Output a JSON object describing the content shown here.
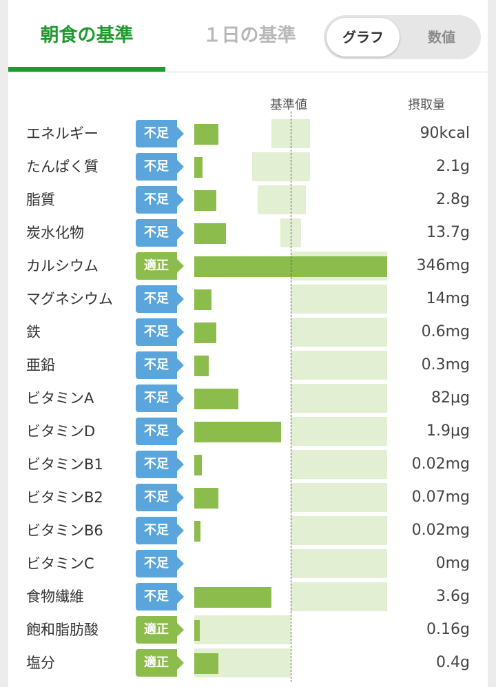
{
  "tabs": [
    {
      "label": "朝食の基準",
      "active": true
    },
    {
      "label": "１日の基準",
      "active": false
    }
  ],
  "view_toggle": {
    "options": [
      "グラフ",
      "数値"
    ],
    "selected": "グラフ"
  },
  "column_headers": {
    "standard": "基準値",
    "intake": "摂取量"
  },
  "colors": {
    "accent_green": "#1e9a2e",
    "status_lack": "#5aa6dc",
    "status_ok": "#8cbd4c",
    "range_fill": "#e3efd2"
  },
  "nutrients": [
    {
      "name": "エネルギー",
      "status": "不足",
      "status_type": "lack",
      "intake": "90kcal",
      "bar_pct": 0.125,
      "range_pct": [
        0.4,
        0.6
      ]
    },
    {
      "name": "たんぱく質",
      "status": "不足",
      "status_type": "lack",
      "intake": "2.1g",
      "bar_pct": 0.043,
      "range_pct": [
        0.3,
        0.6
      ]
    },
    {
      "name": "脂質",
      "status": "不足",
      "status_type": "lack",
      "intake": "2.8g",
      "bar_pct": 0.115,
      "range_pct": [
        0.33,
        0.58
      ]
    },
    {
      "name": "炭水化物",
      "status": "不足",
      "status_type": "lack",
      "intake": "13.7g",
      "bar_pct": 0.165,
      "range_pct": [
        0.445,
        0.555
      ]
    },
    {
      "name": "カルシウム",
      "status": "適正",
      "status_type": "ok",
      "intake": "346mg",
      "bar_pct": 1.0,
      "range_pct": [
        0.5,
        1.0
      ]
    },
    {
      "name": "マグネシウム",
      "status": "不足",
      "status_type": "lack",
      "intake": "14mg",
      "bar_pct": 0.09,
      "range_pct": [
        0.5,
        1.0
      ]
    },
    {
      "name": "鉄",
      "status": "不足",
      "status_type": "lack",
      "intake": "0.6mg",
      "bar_pct": 0.115,
      "range_pct": [
        0.5,
        1.0
      ]
    },
    {
      "name": "亜鉛",
      "status": "不足",
      "status_type": "lack",
      "intake": "0.3mg",
      "bar_pct": 0.075,
      "range_pct": [
        0.5,
        1.0
      ]
    },
    {
      "name": "ビタミンA",
      "status": "不足",
      "status_type": "lack",
      "intake": "82μg",
      "bar_pct": 0.23,
      "range_pct": [
        0.5,
        1.0
      ]
    },
    {
      "name": "ビタミンD",
      "status": "不足",
      "status_type": "lack",
      "intake": "1.9μg",
      "bar_pct": 0.45,
      "range_pct": [
        0.5,
        1.0
      ]
    },
    {
      "name": "ビタミンB1",
      "status": "不足",
      "status_type": "lack",
      "intake": "0.02mg",
      "bar_pct": 0.04,
      "range_pct": [
        0.5,
        1.0
      ]
    },
    {
      "name": "ビタミンB2",
      "status": "不足",
      "status_type": "lack",
      "intake": "0.07mg",
      "bar_pct": 0.125,
      "range_pct": [
        0.5,
        1.0
      ]
    },
    {
      "name": "ビタミンB6",
      "status": "不足",
      "status_type": "lack",
      "intake": "0.02mg",
      "bar_pct": 0.033,
      "range_pct": [
        0.5,
        1.0
      ]
    },
    {
      "name": "ビタミンC",
      "status": "不足",
      "status_type": "lack",
      "intake": "0mg",
      "bar_pct": 0.0,
      "range_pct": [
        0.5,
        1.0
      ]
    },
    {
      "name": "食物繊維",
      "status": "不足",
      "status_type": "lack",
      "intake": "3.6g",
      "bar_pct": 0.4,
      "range_pct": [
        0.5,
        1.0
      ]
    },
    {
      "name": "飽和脂肪酸",
      "status": "適正",
      "status_type": "ok",
      "intake": "0.16g",
      "bar_pct": 0.03,
      "range_pct": [
        0.0,
        0.5
      ]
    },
    {
      "name": "塩分",
      "status": "適正",
      "status_type": "ok",
      "intake": "0.4g",
      "bar_pct": 0.125,
      "range_pct": [
        0.0,
        0.5
      ]
    }
  ]
}
